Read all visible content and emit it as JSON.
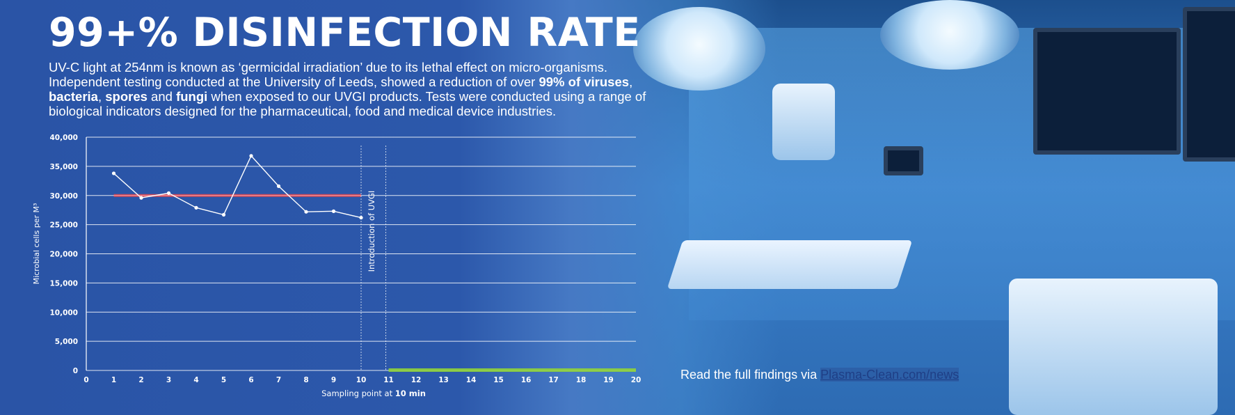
{
  "title": "99+% DISINFECTION RATE",
  "intro": {
    "part1": "UV-C light at 254nm is known as ‘germicidal irradiation’ due to its lethal effect on micro-organisms. Independent testing conducted at the University of Leeds, showed a reduction of over ",
    "bold1": "99% of viruses",
    "sep1": ", ",
    "bold2": "bacteria",
    "sep2": ", ",
    "bold3": "spores",
    "sep3": " and ",
    "bold4": "fungi",
    "part2": " when exposed to our UVGI products. Tests were conducted using a range of biological indicators designed for the pharmaceutical, food and medical device industries."
  },
  "footer": {
    "text": "Read the full findings via ",
    "link": "Plasma-Clean.com/news"
  },
  "colors": {
    "background": "#2a54a6",
    "line": "#ffffff",
    "pre_uvgi_band": "#e0474f",
    "post_uvgi_band": "#8fd13a"
  },
  "chart_data": {
    "type": "line",
    "x": [
      1,
      2,
      3,
      4,
      5,
      6,
      7,
      8,
      9,
      10
    ],
    "series": [
      {
        "values": [
          33800,
          29600,
          30400,
          27900,
          26700,
          36800,
          31600,
          27200,
          27300,
          26200
        ]
      }
    ],
    "xticks": [
      "0",
      "1",
      "2",
      "3",
      "4",
      "5",
      "6",
      "7",
      "8",
      "9",
      "10",
      "11",
      "12",
      "13",
      "14",
      "15",
      "16",
      "17",
      "18",
      "19",
      "20"
    ],
    "yticks": [
      "0",
      "5,000",
      "10,000",
      "15,000",
      "20,000",
      "25,000",
      "30,000",
      "35,000",
      "40,000"
    ],
    "xlim": [
      0,
      20
    ],
    "ylim": [
      0,
      40000
    ],
    "xlabel_prefix": "Sampling point at ",
    "xlabel_bold": "10 min",
    "ylabel": "Microbial cells per M³",
    "grid": "horizontal",
    "annotation": "Introduction of UVGI",
    "annotation_x": [
      10,
      10.9
    ],
    "pre_band": {
      "x": [
        1,
        10
      ],
      "y": 30000
    },
    "post_band": {
      "x": [
        11,
        20
      ],
      "y": 0
    }
  }
}
